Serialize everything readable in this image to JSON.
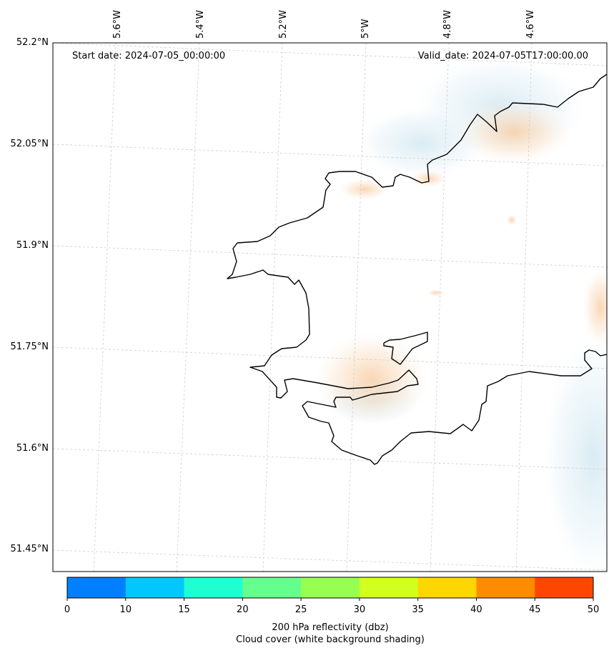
{
  "map": {
    "start_date": "Start date: 2024-07-05_00:00:00",
    "valid_date": "Valid_date: 2024-07-05T17:00:00.00",
    "lon_labels": [
      "5.6°W",
      "5.4°W",
      "5.2°W",
      "5°W",
      "4.8°W",
      "4.6°W"
    ],
    "lat_labels": [
      "52.2°N",
      "52.05°N",
      "51.9°N",
      "51.75°N",
      "51.6°N",
      "51.45°N"
    ]
  },
  "colorbar": {
    "ticks": [
      "0",
      "10",
      "15",
      "20",
      "25",
      "30",
      "35",
      "40",
      "45",
      "50"
    ],
    "colors": [
      "#0080ff",
      "#00c8ff",
      "#1effd2",
      "#64ff8c",
      "#96ff50",
      "#d2ff1e",
      "#ffd700",
      "#ff8c00",
      "#ff4600"
    ],
    "label_line1": "200 hPa reflectivity (dbz)",
    "label_line2": "Cloud cover (white background shading)"
  }
}
